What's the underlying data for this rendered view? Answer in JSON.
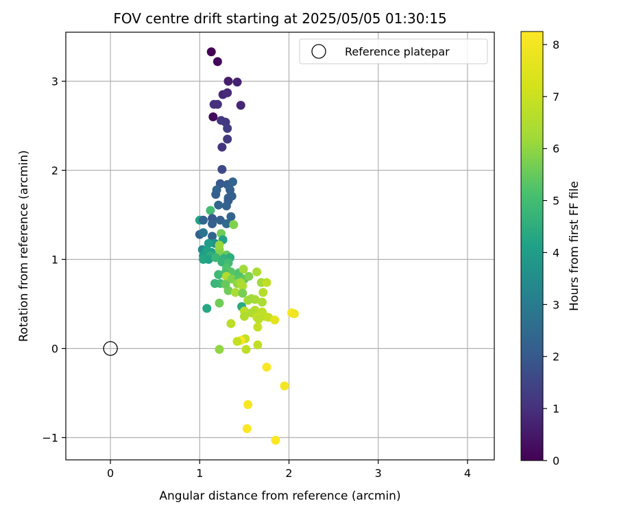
{
  "chart_data": {
    "type": "scatter",
    "title": "FOV centre drift starting at 2025/05/05 01:30:15",
    "xlabel": "Angular distance from reference (arcmin)",
    "ylabel": "Rotation from reference (arcmin)",
    "xlim": [
      -0.5,
      4.3
    ],
    "ylim": [
      -1.25,
      3.55
    ],
    "xticks": [
      0,
      1,
      2,
      3,
      4
    ],
    "yticks": [
      -1,
      0,
      1,
      2,
      3
    ],
    "xtick_labels": [
      "0",
      "1",
      "2",
      "3",
      "4"
    ],
    "ytick_labels": [
      "−1",
      "0",
      "1",
      "2",
      "3"
    ],
    "grid": true,
    "legend": {
      "position": "top-right",
      "entries": [
        "Reference platepar"
      ]
    },
    "reference_point": {
      "label": "Reference platepar",
      "x": 0,
      "y": 0,
      "marker": "open-circle"
    },
    "colorbar": {
      "label": "Hours from first FF file",
      "min": 0,
      "max": 8.25,
      "ticks": [
        0,
        1,
        2,
        3,
        4,
        5,
        6,
        7,
        8
      ],
      "tick_labels": [
        "0",
        "1",
        "2",
        "3",
        "4",
        "5",
        "6",
        "7",
        "8"
      ],
      "colormap": "viridis"
    },
    "series": [
      {
        "columns": [
          "x",
          "y",
          "hours"
        ],
        "points": [
          [
            1.13,
            3.33,
            0.0
          ],
          [
            1.2,
            3.22,
            0.1
          ],
          [
            1.42,
            2.99,
            0.7
          ],
          [
            1.32,
            3.0,
            0.6
          ],
          [
            1.26,
            2.85,
            0.8
          ],
          [
            1.31,
            2.87,
            0.9
          ],
          [
            1.16,
            2.74,
            1.0
          ],
          [
            1.2,
            2.74,
            1.0
          ],
          [
            1.46,
            2.73,
            0.8
          ],
          [
            1.15,
            2.6,
            0.2
          ],
          [
            1.24,
            2.56,
            1.2
          ],
          [
            1.29,
            2.54,
            1.2
          ],
          [
            1.31,
            2.47,
            1.3
          ],
          [
            1.31,
            2.35,
            1.2
          ],
          [
            1.25,
            2.26,
            1.1
          ],
          [
            1.25,
            2.01,
            1.6
          ],
          [
            1.23,
            1.85,
            2.0
          ],
          [
            1.31,
            1.84,
            2.1
          ],
          [
            1.37,
            1.87,
            2.3
          ],
          [
            1.19,
            1.78,
            2.3
          ],
          [
            1.34,
            1.78,
            2.2
          ],
          [
            1.18,
            1.73,
            2.2
          ],
          [
            1.32,
            1.69,
            2.3
          ],
          [
            1.36,
            1.71,
            2.2
          ],
          [
            1.32,
            1.66,
            2.1
          ],
          [
            1.21,
            1.61,
            2.4
          ],
          [
            1.3,
            1.6,
            2.2
          ],
          [
            1.12,
            1.55,
            5.0
          ],
          [
            1.35,
            1.48,
            2.3
          ],
          [
            1.14,
            1.46,
            2.0
          ],
          [
            1.23,
            1.44,
            2.2
          ],
          [
            1.0,
            1.44,
            4.2
          ],
          [
            1.04,
            1.44,
            2.3
          ],
          [
            1.14,
            1.4,
            2.2
          ],
          [
            1.3,
            1.4,
            2.5
          ],
          [
            1.38,
            1.39,
            5.8
          ],
          [
            1.0,
            1.28,
            2.2
          ],
          [
            1.04,
            1.3,
            2.8
          ],
          [
            1.14,
            1.26,
            2.3
          ],
          [
            1.24,
            1.29,
            5.6
          ],
          [
            1.26,
            1.22,
            4.2
          ],
          [
            1.17,
            1.18,
            3.6
          ],
          [
            1.1,
            1.18,
            4.0
          ],
          [
            1.03,
            1.11,
            3.5
          ],
          [
            1.08,
            1.1,
            4.2
          ],
          [
            1.13,
            1.08,
            4.1
          ],
          [
            1.22,
            1.11,
            5.9
          ],
          [
            1.22,
            1.16,
            6.1
          ],
          [
            1.04,
            1.04,
            4.1
          ],
          [
            1.12,
            1.04,
            4.5
          ],
          [
            1.22,
            1.05,
            5.8
          ],
          [
            1.3,
            1.05,
            5.5
          ],
          [
            1.04,
            1.0,
            4.3
          ],
          [
            1.1,
            1.0,
            4.2
          ],
          [
            1.18,
            1.02,
            4.8
          ],
          [
            1.27,
            1.01,
            4.6
          ],
          [
            1.34,
            1.02,
            4.5
          ],
          [
            1.25,
            0.97,
            4.7
          ],
          [
            1.32,
            0.96,
            5.0
          ],
          [
            1.3,
            0.9,
            5.2
          ],
          [
            1.35,
            0.86,
            5.3
          ],
          [
            1.21,
            0.83,
            4.9
          ],
          [
            1.28,
            0.84,
            5.1
          ],
          [
            1.37,
            0.83,
            5.3
          ],
          [
            1.44,
            0.85,
            5.2
          ],
          [
            1.49,
            0.89,
            6.2
          ],
          [
            1.3,
            0.81,
            6.5
          ],
          [
            1.36,
            0.78,
            5.8
          ],
          [
            1.44,
            0.78,
            5.3
          ],
          [
            1.5,
            0.78,
            5.4
          ],
          [
            1.55,
            0.81,
            5.8
          ],
          [
            1.64,
            0.86,
            6.4
          ],
          [
            1.23,
            0.73,
            5.0
          ],
          [
            1.17,
            0.73,
            4.8
          ],
          [
            1.29,
            0.72,
            5.5
          ],
          [
            1.42,
            0.73,
            6.0
          ],
          [
            1.46,
            0.74,
            6.3
          ],
          [
            1.48,
            0.7,
            6.5
          ],
          [
            1.69,
            0.74,
            6.2
          ],
          [
            1.75,
            0.74,
            6.8
          ],
          [
            1.32,
            0.65,
            5.6
          ],
          [
            1.4,
            0.63,
            6.4
          ],
          [
            1.48,
            0.62,
            5.7
          ],
          [
            1.71,
            0.63,
            6.6
          ],
          [
            1.58,
            0.56,
            6.2
          ],
          [
            1.62,
            0.55,
            6.3
          ],
          [
            1.54,
            0.54,
            6.2
          ],
          [
            1.7,
            0.52,
            6.4
          ],
          [
            1.22,
            0.51,
            5.6
          ],
          [
            1.47,
            0.47,
            4.4
          ],
          [
            1.08,
            0.45,
            4.3
          ],
          [
            1.62,
            0.43,
            6.6
          ],
          [
            1.5,
            0.42,
            6.7
          ],
          [
            1.7,
            0.41,
            6.8
          ],
          [
            1.58,
            0.4,
            6.5
          ],
          [
            1.73,
            0.36,
            6.8
          ],
          [
            1.64,
            0.35,
            6.9
          ],
          [
            1.5,
            0.36,
            6.5
          ],
          [
            1.66,
            0.33,
            6.7
          ],
          [
            1.77,
            0.35,
            6.9
          ],
          [
            1.84,
            0.32,
            7.6
          ],
          [
            2.03,
            0.4,
            8.1
          ],
          [
            2.06,
            0.39,
            7.9
          ],
          [
            1.35,
            0.28,
            6.7
          ],
          [
            1.65,
            0.24,
            6.9
          ],
          [
            1.51,
            0.11,
            6.9
          ],
          [
            1.46,
            0.09,
            8.1
          ],
          [
            1.42,
            0.08,
            6.9
          ],
          [
            1.65,
            0.04,
            6.8
          ],
          [
            1.22,
            -0.01,
            6.0
          ],
          [
            1.52,
            -0.01,
            6.8
          ],
          [
            1.75,
            -0.21,
            8.2
          ],
          [
            1.95,
            -0.42,
            8.0
          ],
          [
            1.54,
            -0.63,
            8.1
          ],
          [
            1.53,
            -0.9,
            8.2
          ],
          [
            1.85,
            -1.03,
            8.2
          ]
        ]
      }
    ]
  }
}
